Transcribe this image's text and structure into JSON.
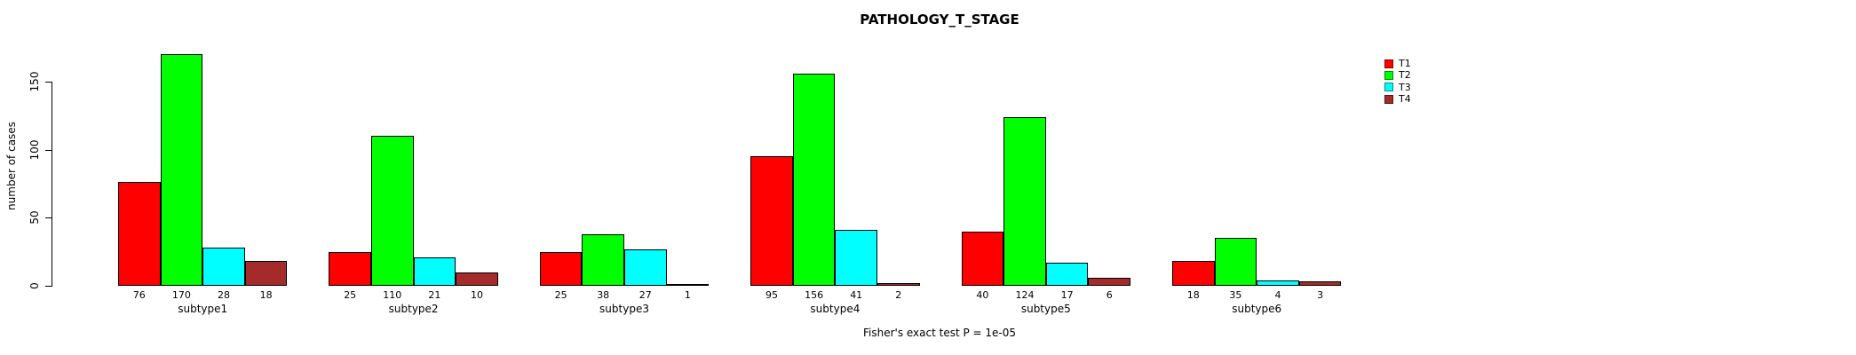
{
  "chart_data": {
    "type": "bar",
    "title": "PATHOLOGY_T_STAGE",
    "xlabel": "",
    "ylabel": "number of cases",
    "categories": [
      "subtype1",
      "subtype2",
      "subtype3",
      "subtype4",
      "subtype5",
      "subtype6"
    ],
    "series": [
      {
        "name": "T1",
        "color": "#ff0000",
        "values": [
          76,
          25,
          25,
          95,
          40,
          18
        ]
      },
      {
        "name": "T2",
        "color": "#00ff00",
        "values": [
          170,
          110,
          38,
          156,
          124,
          35
        ]
      },
      {
        "name": "T3",
        "color": "#00ffff",
        "values": [
          28,
          21,
          27,
          41,
          17,
          4
        ]
      },
      {
        "name": "T4",
        "color": "#a52a2a",
        "values": [
          18,
          10,
          1,
          2,
          6,
          3
        ]
      }
    ],
    "yticks": [
      0,
      50,
      100,
      150
    ],
    "ylim": [
      0,
      150
    ],
    "grid": false,
    "bar_value_labels_shown": true,
    "legend_position": "right",
    "legend_entries": [
      "T1",
      "T2",
      "T3",
      "T4"
    ],
    "annotation": "Fisher's exact test P = 1e-05",
    "background": "#ffffff",
    "text_color": "#000000"
  }
}
